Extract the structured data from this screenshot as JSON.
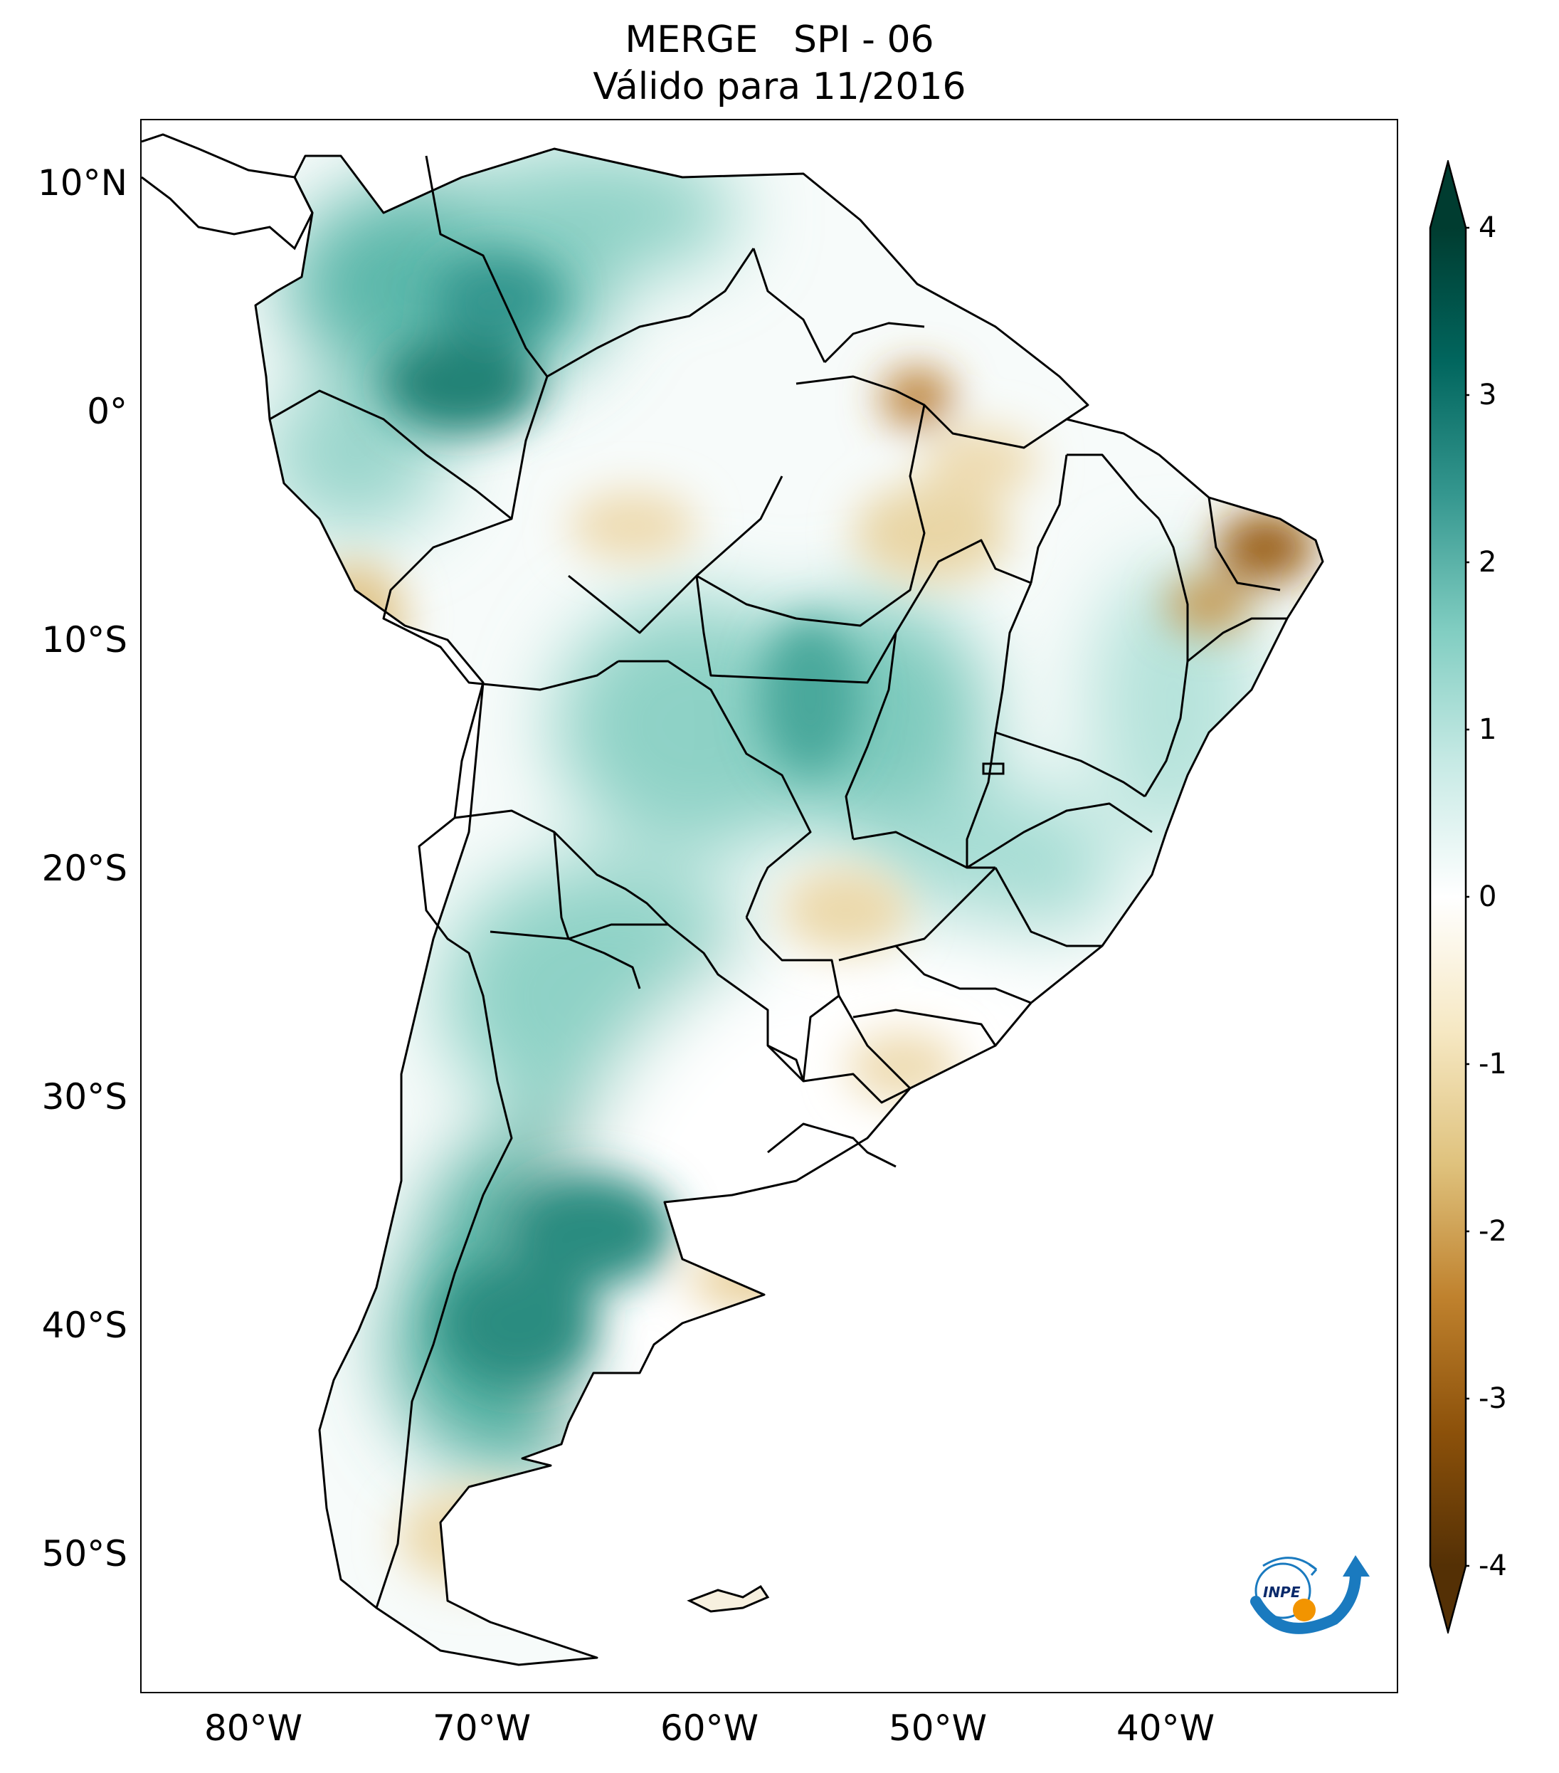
{
  "title": {
    "line1": "MERGE   SPI - 06",
    "line2": "Válido para 11/2016"
  },
  "map": {
    "region": "South America",
    "lon_range": [
      -85,
      -30
    ],
    "lat_range": [
      -56,
      13
    ],
    "lat_ticks": [
      {
        "value": 10,
        "label": "10°N"
      },
      {
        "value": 0,
        "label": "0°"
      },
      {
        "value": -10,
        "label": "10°S"
      },
      {
        "value": -20,
        "label": "20°S"
      },
      {
        "value": -30,
        "label": "30°S"
      },
      {
        "value": -40,
        "label": "40°S"
      },
      {
        "value": -50,
        "label": "50°S"
      }
    ],
    "lon_ticks": [
      {
        "value": -80,
        "label": "80°W"
      },
      {
        "value": -70,
        "label": "70°W"
      },
      {
        "value": -60,
        "label": "60°W"
      },
      {
        "value": -50,
        "label": "50°W"
      },
      {
        "value": -40,
        "label": "40°W"
      }
    ],
    "colors": {
      "wet_strong": "#0d5c52",
      "wet": "#35978f",
      "wet_light": "#80cdc1",
      "neutral": "#f5f5f5",
      "dry_light": "#dfc27d",
      "dry": "#bf812d",
      "dry_strong": "#8c510a",
      "boundary": "#000000"
    }
  },
  "colorbar": {
    "min": -4,
    "max": 4,
    "ticks": [
      {
        "value": 4,
        "label": "4"
      },
      {
        "value": 3,
        "label": "3"
      },
      {
        "value": 2,
        "label": "2"
      },
      {
        "value": 1,
        "label": "1"
      },
      {
        "value": 0,
        "label": "0"
      },
      {
        "value": -1,
        "label": "-1"
      },
      {
        "value": -2,
        "label": "-2"
      },
      {
        "value": -3,
        "label": "-3"
      },
      {
        "value": -4,
        "label": "-4"
      }
    ],
    "extend": "both",
    "colormap": [
      "#543005",
      "#8c510a",
      "#bf812d",
      "#dfc27d",
      "#f6e8c3",
      "#ffffff",
      "#c7eae5",
      "#80cdc1",
      "#35978f",
      "#01665e",
      "#003c30"
    ]
  },
  "logo": {
    "text": "INPE",
    "colors": {
      "arrow": "#1a7abf",
      "dot": "#f29400"
    }
  }
}
